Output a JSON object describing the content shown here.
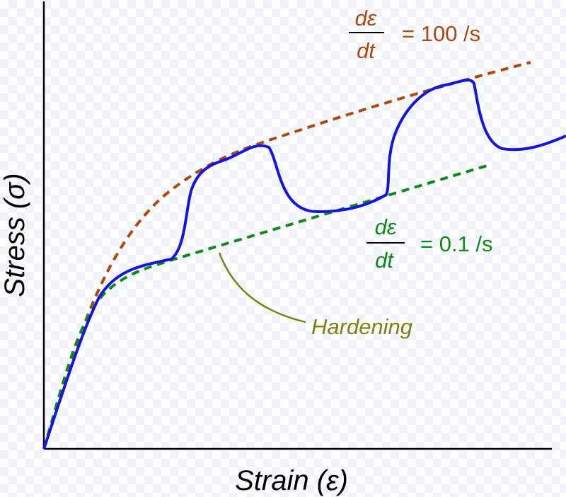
{
  "axes": {
    "x_label": "Strain (ε)",
    "y_label": "Stress (σ)"
  },
  "high_rate": {
    "numerator": "dε",
    "denominator": "dt",
    "value": "= 100 /s",
    "color": "#b0470e"
  },
  "low_rate": {
    "numerator": "dε",
    "denominator": "dt",
    "value": "= 0.1 /s",
    "color": "#0f8a1a"
  },
  "annotation": {
    "label": "Hardening",
    "color": "#808010"
  },
  "curve": {
    "color": "#1515e0"
  }
}
